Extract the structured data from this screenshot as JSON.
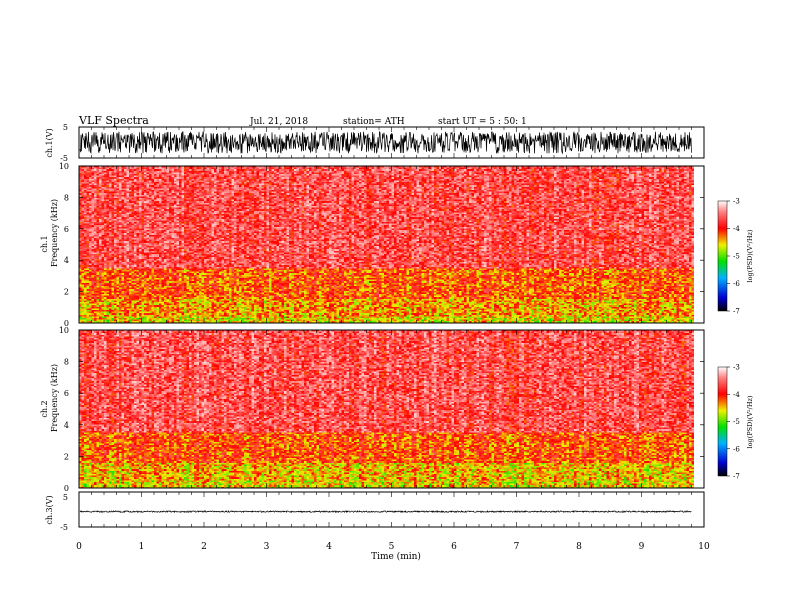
{
  "header": {
    "title": "VLF  Spectra",
    "date": "Jul.  21,  2018",
    "station": "station= ATH",
    "start": "start  UT  =    5  : 50: 1"
  },
  "chart_data": [
    {
      "type": "line",
      "panel": "ch1_waveform",
      "ylabel": "ch.1(V)",
      "ylim": [
        -5,
        5
      ],
      "yticks": [
        "5",
        "-5"
      ],
      "x_range_min": [
        0,
        9.8
      ],
      "amplitude_V": 3.5,
      "color": "#000000"
    },
    {
      "type": "heatmap",
      "panel": "ch1_spectrogram",
      "ylabel_line1": "ch.1",
      "ylabel_line2": "Frequency  (kHz)",
      "ylim": [
        0,
        10
      ],
      "yticks": [
        "0",
        "2",
        "4",
        "6",
        "8",
        "10"
      ],
      "x_range_min": [
        0,
        9.8
      ],
      "bands": [
        {
          "f_kHz": [
            0,
            0.5
          ],
          "log_psd": -4.7
        },
        {
          "f_kHz": [
            0.5,
            1.6
          ],
          "log_psd": -4.5
        },
        {
          "f_kHz": [
            1.6,
            3.5
          ],
          "log_psd": -4.3
        },
        {
          "f_kHz": [
            3.5,
            10
          ],
          "log_psd": -3.8
        }
      ]
    },
    {
      "type": "heatmap",
      "panel": "ch2_spectrogram",
      "ylabel_line1": "ch.2",
      "ylabel_line2": "Frequency  (kHz)",
      "ylim": [
        0,
        10
      ],
      "yticks": [
        "0",
        "2",
        "4",
        "6",
        "8",
        "10"
      ],
      "x_range_min": [
        0,
        9.8
      ],
      "bands": [
        {
          "f_kHz": [
            0,
            0.5
          ],
          "log_psd": -4.7
        },
        {
          "f_kHz": [
            0.5,
            1.6
          ],
          "log_psd": -4.6
        },
        {
          "f_kHz": [
            1.6,
            3.6
          ],
          "log_psd": -4.3
        },
        {
          "f_kHz": [
            3.6,
            10
          ],
          "log_psd": -3.8
        }
      ]
    },
    {
      "type": "line",
      "panel": "ch3_waveform",
      "ylabel": "ch.3(V)",
      "ylim": [
        -5,
        5
      ],
      "yticks": [
        "5",
        "-5"
      ],
      "x_range_min": [
        0,
        9.8
      ],
      "amplitude_V": 0.2,
      "offset_V": -0.6,
      "color": "#000000"
    }
  ],
  "xaxis": {
    "label": "Time  (min)",
    "xlim": [
      0,
      10
    ],
    "ticks": [
      "0",
      "1",
      "2",
      "3",
      "4",
      "5",
      "6",
      "7",
      "8",
      "9",
      "10"
    ]
  },
  "colorbar": {
    "label": "log(PSD)(V²/Hz)",
    "ticks": [
      "-3",
      "-4",
      "-5",
      "-6",
      "-7"
    ],
    "range": [
      -7,
      -3
    ],
    "colors": [
      "#000000",
      "#0000d0",
      "#00b0ff",
      "#00e000",
      "#f0f000",
      "#ff0000",
      "#ff8080",
      "#ffffff"
    ]
  }
}
